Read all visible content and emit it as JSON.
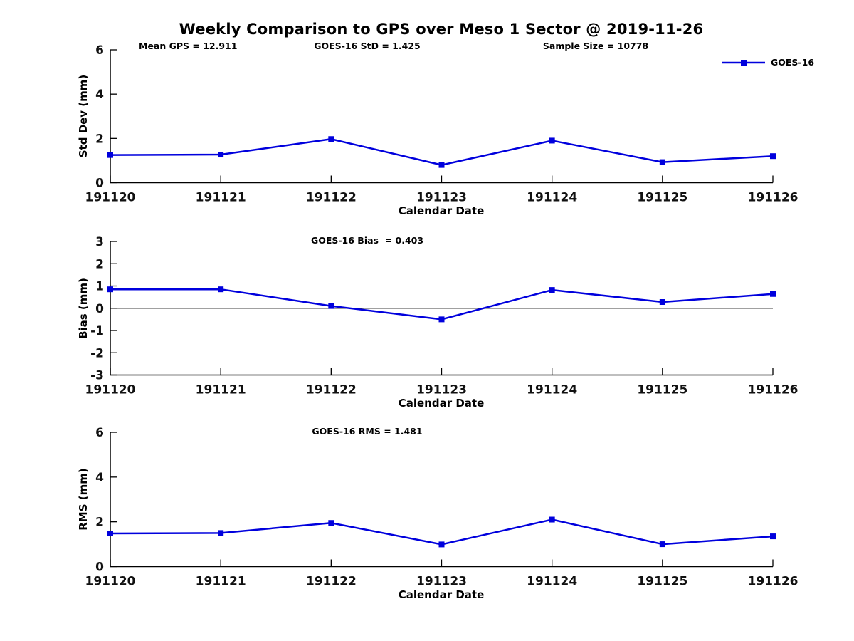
{
  "title": "Weekly Comparison to GPS over Meso 1 Sector @ 2019-11-26",
  "annotations": {
    "mean_gps": "Mean GPS = 12.911",
    "goes16_std": "GOES-16 StD = 1.425",
    "sample_size": "Sample Size = 10778"
  },
  "legend": {
    "label": "GOES-16"
  },
  "colors": {
    "series": "#0000dd",
    "axis": "#000000",
    "zero_line": "#000000",
    "text": "#111111"
  },
  "chart_data": [
    {
      "type": "line",
      "title": "",
      "xlabel": "Calendar Date",
      "ylabel": "Std Dev (mm)",
      "categories": [
        "191120",
        "191121",
        "191122",
        "191123",
        "191124",
        "191125",
        "191126"
      ],
      "series": [
        {
          "name": "GOES-16",
          "values": [
            1.25,
            1.27,
            1.97,
            0.8,
            1.9,
            0.93,
            1.2
          ]
        }
      ],
      "ylim": [
        0,
        6
      ],
      "yticks": [
        0,
        2,
        4,
        6
      ],
      "zero_line": false,
      "grid": false,
      "legend_position": "top-right"
    },
    {
      "type": "line",
      "title": "GOES-16 Bias  = 0.403",
      "xlabel": "Calendar Date",
      "ylabel": "Bias (mm)",
      "categories": [
        "191120",
        "191121",
        "191122",
        "191123",
        "191124",
        "191125",
        "191126"
      ],
      "series": [
        {
          "name": "GOES-16",
          "values": [
            0.85,
            0.85,
            0.1,
            -0.5,
            0.82,
            0.28,
            0.64
          ]
        }
      ],
      "ylim": [
        -3,
        3
      ],
      "yticks": [
        -3,
        -2,
        -1,
        0,
        1,
        2,
        3
      ],
      "zero_line": true,
      "grid": false
    },
    {
      "type": "line",
      "title": "GOES-16 RMS = 1.481",
      "xlabel": "Calendar Date",
      "ylabel": "RMS (mm)",
      "categories": [
        "191120",
        "191121",
        "191122",
        "191123",
        "191124",
        "191125",
        "191126"
      ],
      "series": [
        {
          "name": "GOES-16",
          "values": [
            1.48,
            1.5,
            1.95,
            0.99,
            2.1,
            1.0,
            1.35
          ]
        }
      ],
      "ylim": [
        0,
        6
      ],
      "yticks": [
        0,
        2,
        4,
        6
      ],
      "zero_line": false,
      "grid": false
    }
  ]
}
